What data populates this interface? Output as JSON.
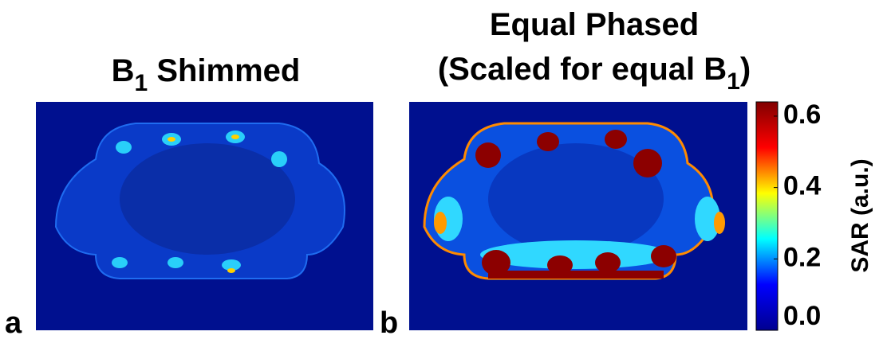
{
  "chart_data": {
    "type": "heatmap",
    "panels": [
      {
        "letter": "a",
        "title": {
          "main": "B",
          "sub": "1",
          "rest": " Shimmed"
        }
      },
      {
        "letter": "b",
        "title": {
          "line1": "Equal Phased",
          "main": "(Scaled for equal B",
          "sub": "1",
          "rest": ")"
        }
      }
    ],
    "colorbar": {
      "label": "SAR (a.u.)",
      "ylim": [
        0,
        0.64
      ],
      "yticks": [
        {
          "value": 0,
          "label": "0.0"
        },
        0.2,
        0.4,
        0.6
      ],
      "colors": [
        "#00008f",
        "#0000ff",
        "#00ffff",
        "#ffff00",
        "#ff0000",
        "#800000"
      ]
    }
  }
}
